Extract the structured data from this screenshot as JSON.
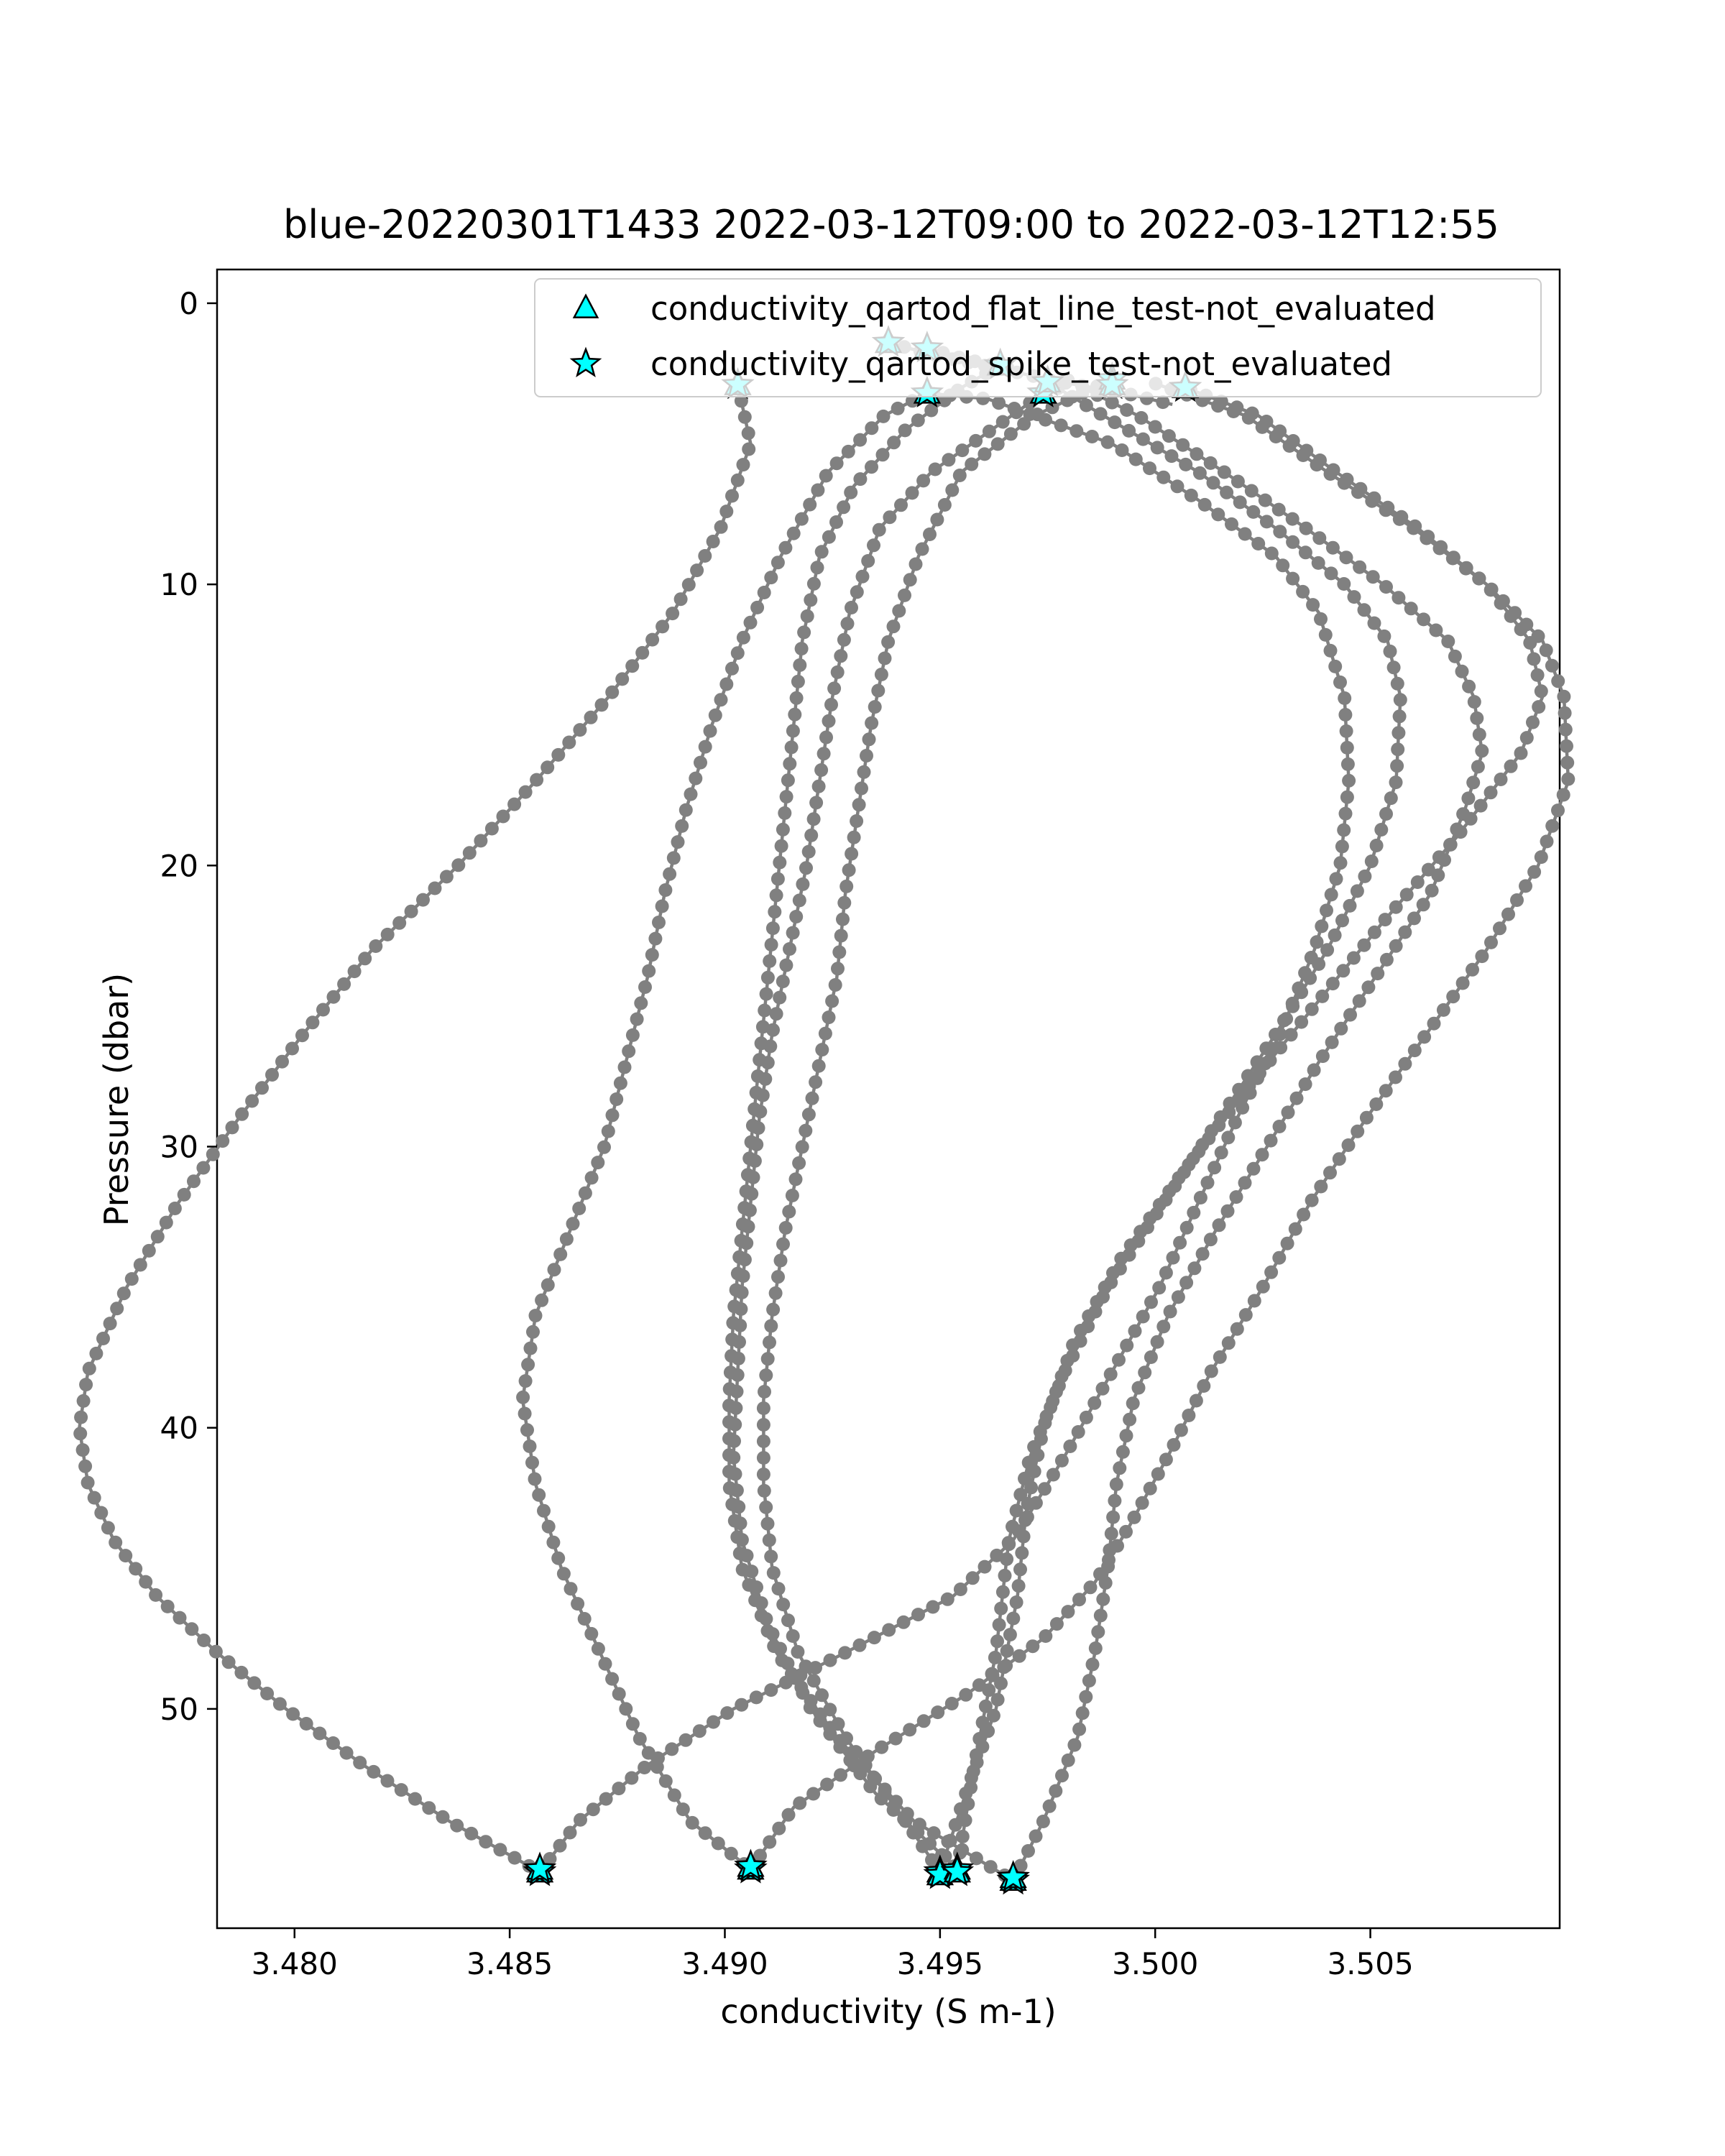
{
  "chart_data": {
    "type": "line",
    "title": "blue-20220301T1433 2022-03-12T09:00 to 2022-03-12T12:55",
    "xlabel": "conductivity (S m-1)",
    "ylabel": "Pressure (dbar)",
    "xlim": [
      3.4782,
      3.5094
    ],
    "ylim": [
      57.8,
      -1.2
    ],
    "y_inverted": true,
    "xticks": [
      3.48,
      3.485,
      3.49,
      3.495,
      3.5,
      3.505
    ],
    "xtick_labels": [
      "3.480",
      "3.485",
      "3.490",
      "3.495",
      "3.500",
      "3.505"
    ],
    "yticks": [
      0,
      10,
      20,
      30,
      40,
      50
    ],
    "ytick_labels": [
      "0",
      "10",
      "20",
      "30",
      "40",
      "50"
    ],
    "grid": false,
    "legend_position": "top-right",
    "legend": [
      {
        "label": "conductivity_qartod_flat_line_test-not_evaluated",
        "marker": "triangle"
      },
      {
        "label": "conductivity_qartod_spike_test-not_evaluated",
        "marker": "star"
      }
    ],
    "line_color": "#808080",
    "marker_fill": "#00ffff",
    "marker_edge": "#000000",
    "profiles": [
      {
        "points": [
          [
            3.4903,
            2.9
          ],
          [
            3.4906,
            5
          ],
          [
            3.4899,
            8
          ],
          [
            3.4888,
            11
          ],
          [
            3.4873,
            14
          ],
          [
            3.4856,
            17
          ],
          [
            3.4838,
            20
          ],
          [
            3.4818,
            23
          ],
          [
            3.4802,
            26
          ],
          [
            3.4787,
            29
          ],
          [
            3.4773,
            32
          ],
          [
            3.4761,
            35
          ],
          [
            3.4752,
            38
          ],
          [
            3.475,
            40
          ],
          [
            3.4752,
            42
          ],
          [
            3.4758,
            44
          ],
          [
            3.4768,
            46
          ],
          [
            3.4782,
            48
          ],
          [
            3.4798,
            50
          ],
          [
            3.4816,
            52
          ],
          [
            3.4836,
            54
          ],
          [
            3.4857,
            55.8
          ]
        ]
      },
      {
        "points": [
          [
            3.4857,
            55.8
          ],
          [
            3.4866,
            54
          ],
          [
            3.4882,
            52
          ],
          [
            3.4902,
            50
          ],
          [
            3.4928,
            48
          ],
          [
            3.4953,
            46
          ],
          [
            3.4967,
            44
          ],
          [
            3.4979,
            41
          ],
          [
            3.499,
            38
          ],
          [
            3.5001,
            35
          ],
          [
            3.501,
            32
          ],
          [
            3.5019,
            29
          ],
          [
            3.5029,
            26
          ],
          [
            3.5037,
            23
          ],
          [
            3.5043,
            20
          ],
          [
            3.5045,
            17
          ],
          [
            3.5044,
            14
          ],
          [
            3.5038,
            11
          ],
          [
            3.5028,
            9
          ],
          [
            3.501,
            7
          ],
          [
            3.499,
            5
          ],
          [
            3.4961,
            3.4
          ],
          [
            3.4947,
            3.2
          ]
        ]
      },
      {
        "points": [
          [
            3.4947,
            3.2
          ],
          [
            3.4937,
            4
          ],
          [
            3.4924,
            6
          ],
          [
            3.4913,
            9
          ],
          [
            3.4904,
            12
          ],
          [
            3.4897,
            15
          ],
          [
            3.4891,
            18
          ],
          [
            3.4886,
            21
          ],
          [
            3.4882,
            24
          ],
          [
            3.4877,
            27
          ],
          [
            3.4872,
            30
          ],
          [
            3.4864,
            33
          ],
          [
            3.4856,
            36
          ],
          [
            3.4853,
            39
          ],
          [
            3.4856,
            42
          ],
          [
            3.4862,
            45
          ],
          [
            3.4871,
            48
          ],
          [
            3.488,
            51
          ],
          [
            3.4892,
            54
          ],
          [
            3.4906,
            55.7
          ]
        ]
      },
      {
        "points": [
          [
            3.4906,
            55.7
          ],
          [
            3.4916,
            53.5
          ],
          [
            3.4935,
            51.5
          ],
          [
            3.4956,
            49.5
          ],
          [
            3.4974,
            47.5
          ],
          [
            3.4986,
            45.5
          ],
          [
            3.4994,
            43.5
          ],
          [
            3.5003,
            41
          ],
          [
            3.5013,
            38
          ],
          [
            3.5025,
            35
          ],
          [
            3.5036,
            32
          ],
          [
            3.5049,
            29
          ],
          [
            3.5063,
            26
          ],
          [
            3.5077,
            23
          ],
          [
            3.5089,
            20
          ],
          [
            3.5096,
            17
          ],
          [
            3.5095,
            14
          ],
          [
            3.509,
            12
          ],
          [
            3.5077,
            10
          ],
          [
            3.5061,
            8
          ],
          [
            3.5042,
            6
          ],
          [
            3.5024,
            4
          ],
          [
            3.5007,
            3.0
          ]
        ]
      },
      {
        "points": [
          [
            3.499,
            2.7
          ],
          [
            3.4972,
            4
          ],
          [
            3.4955,
            6
          ],
          [
            3.4945,
            9
          ],
          [
            3.4938,
            12
          ],
          [
            3.4934,
            15
          ],
          [
            3.4931,
            18
          ],
          [
            3.4928,
            21
          ],
          [
            3.4926,
            24
          ],
          [
            3.4922,
            27
          ],
          [
            3.4918,
            30
          ],
          [
            3.4914,
            33
          ],
          [
            3.4911,
            36
          ],
          [
            3.4909,
            39
          ],
          [
            3.4909,
            42
          ],
          [
            3.4911,
            45
          ],
          [
            3.4917,
            48
          ],
          [
            3.4928,
            51
          ],
          [
            3.4942,
            54
          ],
          [
            3.495,
            55.8
          ]
        ]
      },
      {
        "points": [
          [
            3.495,
            55.8
          ],
          [
            3.4956,
            53
          ],
          [
            3.4963,
            50
          ],
          [
            3.4968,
            46
          ],
          [
            3.497,
            43
          ],
          [
            3.4974,
            40
          ],
          [
            3.4981,
            37
          ],
          [
            3.4992,
            34
          ],
          [
            3.5006,
            31
          ],
          [
            3.5021,
            28
          ],
          [
            3.5037,
            25
          ],
          [
            3.5053,
            22
          ],
          [
            3.507,
            19
          ],
          [
            3.5085,
            16
          ],
          [
            3.509,
            14
          ],
          [
            3.5087,
            12
          ],
          [
            3.5077,
            10
          ],
          [
            3.506,
            8
          ],
          [
            3.504,
            6
          ],
          [
            3.5021,
            4
          ],
          [
            3.4999,
            2.8
          ]
        ]
      },
      {
        "points": [
          [
            3.4974,
            3.2
          ],
          [
            3.4962,
            4.5
          ],
          [
            3.4948,
            6
          ],
          [
            3.4936,
            8
          ],
          [
            3.4929,
            11
          ],
          [
            3.4925,
            14
          ],
          [
            3.4922,
            17
          ],
          [
            3.4919,
            20
          ],
          [
            3.4915,
            23
          ],
          [
            3.4911,
            26
          ],
          [
            3.4908,
            29
          ],
          [
            3.4906,
            32
          ],
          [
            3.4904,
            35
          ],
          [
            3.4903,
            38
          ],
          [
            3.4902,
            41
          ],
          [
            3.4904,
            44
          ],
          [
            3.491,
            47
          ],
          [
            3.492,
            50
          ],
          [
            3.4935,
            53
          ],
          [
            3.4954,
            55.7
          ]
        ]
      },
      {
        "points": [
          [
            3.4954,
            55.7
          ],
          [
            3.4958,
            52
          ],
          [
            3.4963,
            48
          ],
          [
            3.4966,
            44
          ],
          [
            3.4971,
            41
          ],
          [
            3.4979,
            38
          ],
          [
            3.4989,
            35
          ],
          [
            3.5002,
            32
          ],
          [
            3.5015,
            29
          ],
          [
            3.5028,
            26
          ],
          [
            3.504,
            23
          ],
          [
            3.505,
            20
          ],
          [
            3.5056,
            17
          ],
          [
            3.5057,
            14
          ],
          [
            3.5054,
            12
          ],
          [
            3.5044,
            10
          ],
          [
            3.5028,
            8
          ],
          [
            3.501,
            6
          ],
          [
            3.4988,
            4
          ],
          [
            3.4975,
            2.8
          ]
        ]
      },
      {
        "points": [
          [
            3.4964,
            2.2
          ],
          [
            3.4955,
            3
          ],
          [
            3.4942,
            4.5
          ],
          [
            3.493,
            6.5
          ],
          [
            3.4922,
            9
          ],
          [
            3.4918,
            12
          ],
          [
            3.4916,
            15
          ],
          [
            3.4914,
            18
          ],
          [
            3.4912,
            21
          ],
          [
            3.491,
            24
          ],
          [
            3.4908,
            27
          ],
          [
            3.4906,
            30
          ],
          [
            3.4904,
            33
          ],
          [
            3.4902,
            36
          ],
          [
            3.4901,
            39
          ],
          [
            3.4901,
            42
          ],
          [
            3.4904,
            45
          ],
          [
            3.4912,
            48
          ],
          [
            3.4926,
            51
          ],
          [
            3.4944,
            54
          ],
          [
            3.4967,
            56.1
          ]
        ]
      },
      {
        "points": [
          [
            3.4967,
            56.1
          ],
          [
            3.4974,
            54
          ],
          [
            3.4982,
            51
          ],
          [
            3.4986,
            48
          ],
          [
            3.4989,
            45
          ],
          [
            3.4991,
            42
          ],
          [
            3.4995,
            39
          ],
          [
            3.5003,
            36
          ],
          [
            3.5014,
            33
          ],
          [
            3.5026,
            30
          ],
          [
            3.5038,
            27
          ],
          [
            3.5051,
            24
          ],
          [
            3.5064,
            21
          ],
          [
            3.5072,
            18
          ],
          [
            3.5076,
            16
          ],
          [
            3.5074,
            14
          ],
          [
            3.5068,
            12
          ],
          [
            3.5053,
            10
          ],
          [
            3.5035,
            8
          ],
          [
            3.5016,
            6
          ],
          [
            3.4996,
            4
          ],
          [
            3.4978,
            2.6
          ]
        ]
      },
      {
        "points": [
          [
            3.4938,
            1.4
          ],
          [
            3.495,
            1.9
          ],
          [
            3.4963,
            2.3
          ],
          [
            3.4978,
            2.8
          ],
          [
            3.4993,
            3.2
          ],
          [
            3.5004,
            3.6
          ]
        ]
      },
      {
        "points": [
          [
            3.4947,
            1.6
          ],
          [
            3.4956,
            2.0
          ],
          [
            3.4966,
            2.3
          ]
        ]
      }
    ],
    "flagged_points": [
      [
        3.4903,
        2.9
      ],
      [
        3.4938,
        1.4
      ],
      [
        3.4947,
        1.6
      ],
      [
        3.4947,
        3.2
      ],
      [
        3.4964,
        2.2
      ],
      [
        3.4974,
        3.2
      ],
      [
        3.4975,
        2.8
      ],
      [
        3.499,
        2.7
      ],
      [
        3.499,
        2.9
      ],
      [
        3.5007,
        3.0
      ],
      [
        3.4857,
        55.8
      ],
      [
        3.4857,
        55.7
      ],
      [
        3.4906,
        55.7
      ],
      [
        3.4906,
        55.6
      ],
      [
        3.495,
        55.8
      ],
      [
        3.495,
        55.9
      ],
      [
        3.4954,
        55.7
      ],
      [
        3.4954,
        55.8
      ],
      [
        3.4967,
        56.1
      ],
      [
        3.4967,
        56.0
      ]
    ]
  }
}
